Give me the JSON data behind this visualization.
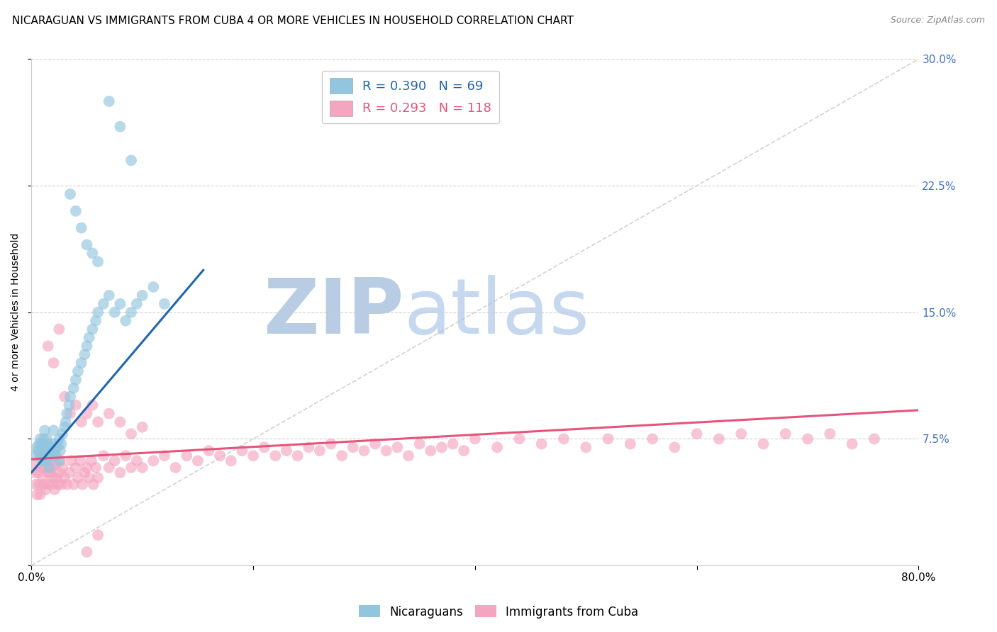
{
  "title": "NICARAGUAN VS IMMIGRANTS FROM CUBA 4 OR MORE VEHICLES IN HOUSEHOLD CORRELATION CHART",
  "source": "Source: ZipAtlas.com",
  "ylabel": "4 or more Vehicles in Household",
  "xlim": [
    0.0,
    0.8
  ],
  "ylim": [
    0.0,
    0.3
  ],
  "xticks": [
    0.0,
    0.2,
    0.4,
    0.6,
    0.8
  ],
  "xtick_labels": [
    "0.0%",
    "",
    "",
    "",
    "80.0%"
  ],
  "yticks": [
    0.0,
    0.075,
    0.15,
    0.225,
    0.3
  ],
  "ytick_labels_right": [
    "",
    "7.5%",
    "15.0%",
    "22.5%",
    "30.0%"
  ],
  "blue_R": 0.39,
  "blue_N": 69,
  "pink_R": 0.293,
  "pink_N": 118,
  "blue_color": "#92c5de",
  "pink_color": "#f4a6c0",
  "blue_line_color": "#2166ac",
  "pink_line_color": "#e8537a",
  "legend_blue_label": "Nicaraguans",
  "legend_pink_label": "Immigrants from Cuba",
  "watermark_zip": "ZIP",
  "watermark_atlas": "atlas",
  "watermark_color": "#c8d8f0",
  "grid_color": "#cccccc",
  "background_color": "#ffffff",
  "title_fontsize": 11,
  "axis_label_fontsize": 10,
  "tick_fontsize": 11,
  "right_tick_color": "#4472c4",
  "blue_line_x": [
    0.0,
    0.155
  ],
  "blue_line_y": [
    0.055,
    0.175
  ],
  "pink_line_x": [
    0.0,
    0.8
  ],
  "pink_line_y": [
    0.063,
    0.092
  ],
  "ref_line_x": [
    0.0,
    0.8
  ],
  "ref_line_y": [
    0.0,
    0.3
  ],
  "blue_x": [
    0.003,
    0.005,
    0.006,
    0.007,
    0.008,
    0.008,
    0.009,
    0.01,
    0.01,
    0.011,
    0.011,
    0.012,
    0.012,
    0.013,
    0.013,
    0.014,
    0.014,
    0.015,
    0.015,
    0.016,
    0.016,
    0.017,
    0.018,
    0.019,
    0.02,
    0.02,
    0.021,
    0.022,
    0.023,
    0.024,
    0.025,
    0.025,
    0.026,
    0.027,
    0.028,
    0.03,
    0.031,
    0.032,
    0.034,
    0.035,
    0.038,
    0.04,
    0.042,
    0.045,
    0.048,
    0.05,
    0.052,
    0.055,
    0.058,
    0.06,
    0.065,
    0.07,
    0.075,
    0.08,
    0.085,
    0.09,
    0.095,
    0.1,
    0.11,
    0.12,
    0.035,
    0.04,
    0.045,
    0.05,
    0.055,
    0.06,
    0.07,
    0.08,
    0.09
  ],
  "blue_y": [
    0.065,
    0.07,
    0.068,
    0.072,
    0.065,
    0.075,
    0.068,
    0.062,
    0.072,
    0.065,
    0.075,
    0.068,
    0.08,
    0.062,
    0.07,
    0.065,
    0.075,
    0.068,
    0.072,
    0.058,
    0.065,
    0.07,
    0.068,
    0.065,
    0.072,
    0.08,
    0.068,
    0.065,
    0.07,
    0.072,
    0.062,
    0.075,
    0.068,
    0.072,
    0.078,
    0.082,
    0.085,
    0.09,
    0.095,
    0.1,
    0.105,
    0.11,
    0.115,
    0.12,
    0.125,
    0.13,
    0.135,
    0.14,
    0.145,
    0.15,
    0.155,
    0.16,
    0.15,
    0.155,
    0.145,
    0.15,
    0.155,
    0.16,
    0.165,
    0.155,
    0.22,
    0.21,
    0.2,
    0.19,
    0.185,
    0.18,
    0.275,
    0.26,
    0.24
  ],
  "pink_x": [
    0.003,
    0.004,
    0.005,
    0.005,
    0.006,
    0.007,
    0.008,
    0.008,
    0.009,
    0.01,
    0.01,
    0.011,
    0.012,
    0.013,
    0.014,
    0.015,
    0.015,
    0.016,
    0.017,
    0.018,
    0.019,
    0.02,
    0.021,
    0.022,
    0.023,
    0.024,
    0.025,
    0.026,
    0.027,
    0.028,
    0.03,
    0.032,
    0.034,
    0.036,
    0.038,
    0.04,
    0.042,
    0.044,
    0.046,
    0.048,
    0.05,
    0.052,
    0.054,
    0.056,
    0.058,
    0.06,
    0.065,
    0.07,
    0.075,
    0.08,
    0.085,
    0.09,
    0.095,
    0.1,
    0.11,
    0.12,
    0.13,
    0.14,
    0.15,
    0.16,
    0.17,
    0.18,
    0.19,
    0.2,
    0.21,
    0.22,
    0.23,
    0.24,
    0.25,
    0.26,
    0.27,
    0.28,
    0.29,
    0.3,
    0.31,
    0.32,
    0.33,
    0.34,
    0.35,
    0.36,
    0.37,
    0.38,
    0.39,
    0.4,
    0.42,
    0.44,
    0.46,
    0.48,
    0.5,
    0.52,
    0.54,
    0.56,
    0.58,
    0.6,
    0.62,
    0.64,
    0.66,
    0.68,
    0.7,
    0.72,
    0.74,
    0.76,
    0.015,
    0.02,
    0.025,
    0.03,
    0.035,
    0.04,
    0.045,
    0.05,
    0.055,
    0.06,
    0.07,
    0.08,
    0.09,
    0.1,
    0.05,
    0.06
  ],
  "pink_y": [
    0.055,
    0.048,
    0.042,
    0.06,
    0.055,
    0.048,
    0.065,
    0.042,
    0.058,
    0.052,
    0.065,
    0.048,
    0.058,
    0.045,
    0.062,
    0.055,
    0.048,
    0.062,
    0.055,
    0.048,
    0.058,
    0.052,
    0.045,
    0.06,
    0.052,
    0.048,
    0.055,
    0.062,
    0.048,
    0.058,
    0.052,
    0.048,
    0.055,
    0.062,
    0.048,
    0.058,
    0.052,
    0.062,
    0.048,
    0.055,
    0.058,
    0.052,
    0.062,
    0.048,
    0.058,
    0.052,
    0.065,
    0.058,
    0.062,
    0.055,
    0.065,
    0.058,
    0.062,
    0.058,
    0.062,
    0.065,
    0.058,
    0.065,
    0.062,
    0.068,
    0.065,
    0.062,
    0.068,
    0.065,
    0.07,
    0.065,
    0.068,
    0.065,
    0.07,
    0.068,
    0.072,
    0.065,
    0.07,
    0.068,
    0.072,
    0.068,
    0.07,
    0.065,
    0.072,
    0.068,
    0.07,
    0.072,
    0.068,
    0.075,
    0.07,
    0.075,
    0.072,
    0.075,
    0.07,
    0.075,
    0.072,
    0.075,
    0.07,
    0.078,
    0.075,
    0.078,
    0.072,
    0.078,
    0.075,
    0.078,
    0.072,
    0.075,
    0.13,
    0.12,
    0.14,
    0.1,
    0.09,
    0.095,
    0.085,
    0.09,
    0.095,
    0.085,
    0.09,
    0.085,
    0.078,
    0.082,
    0.008,
    0.018
  ]
}
